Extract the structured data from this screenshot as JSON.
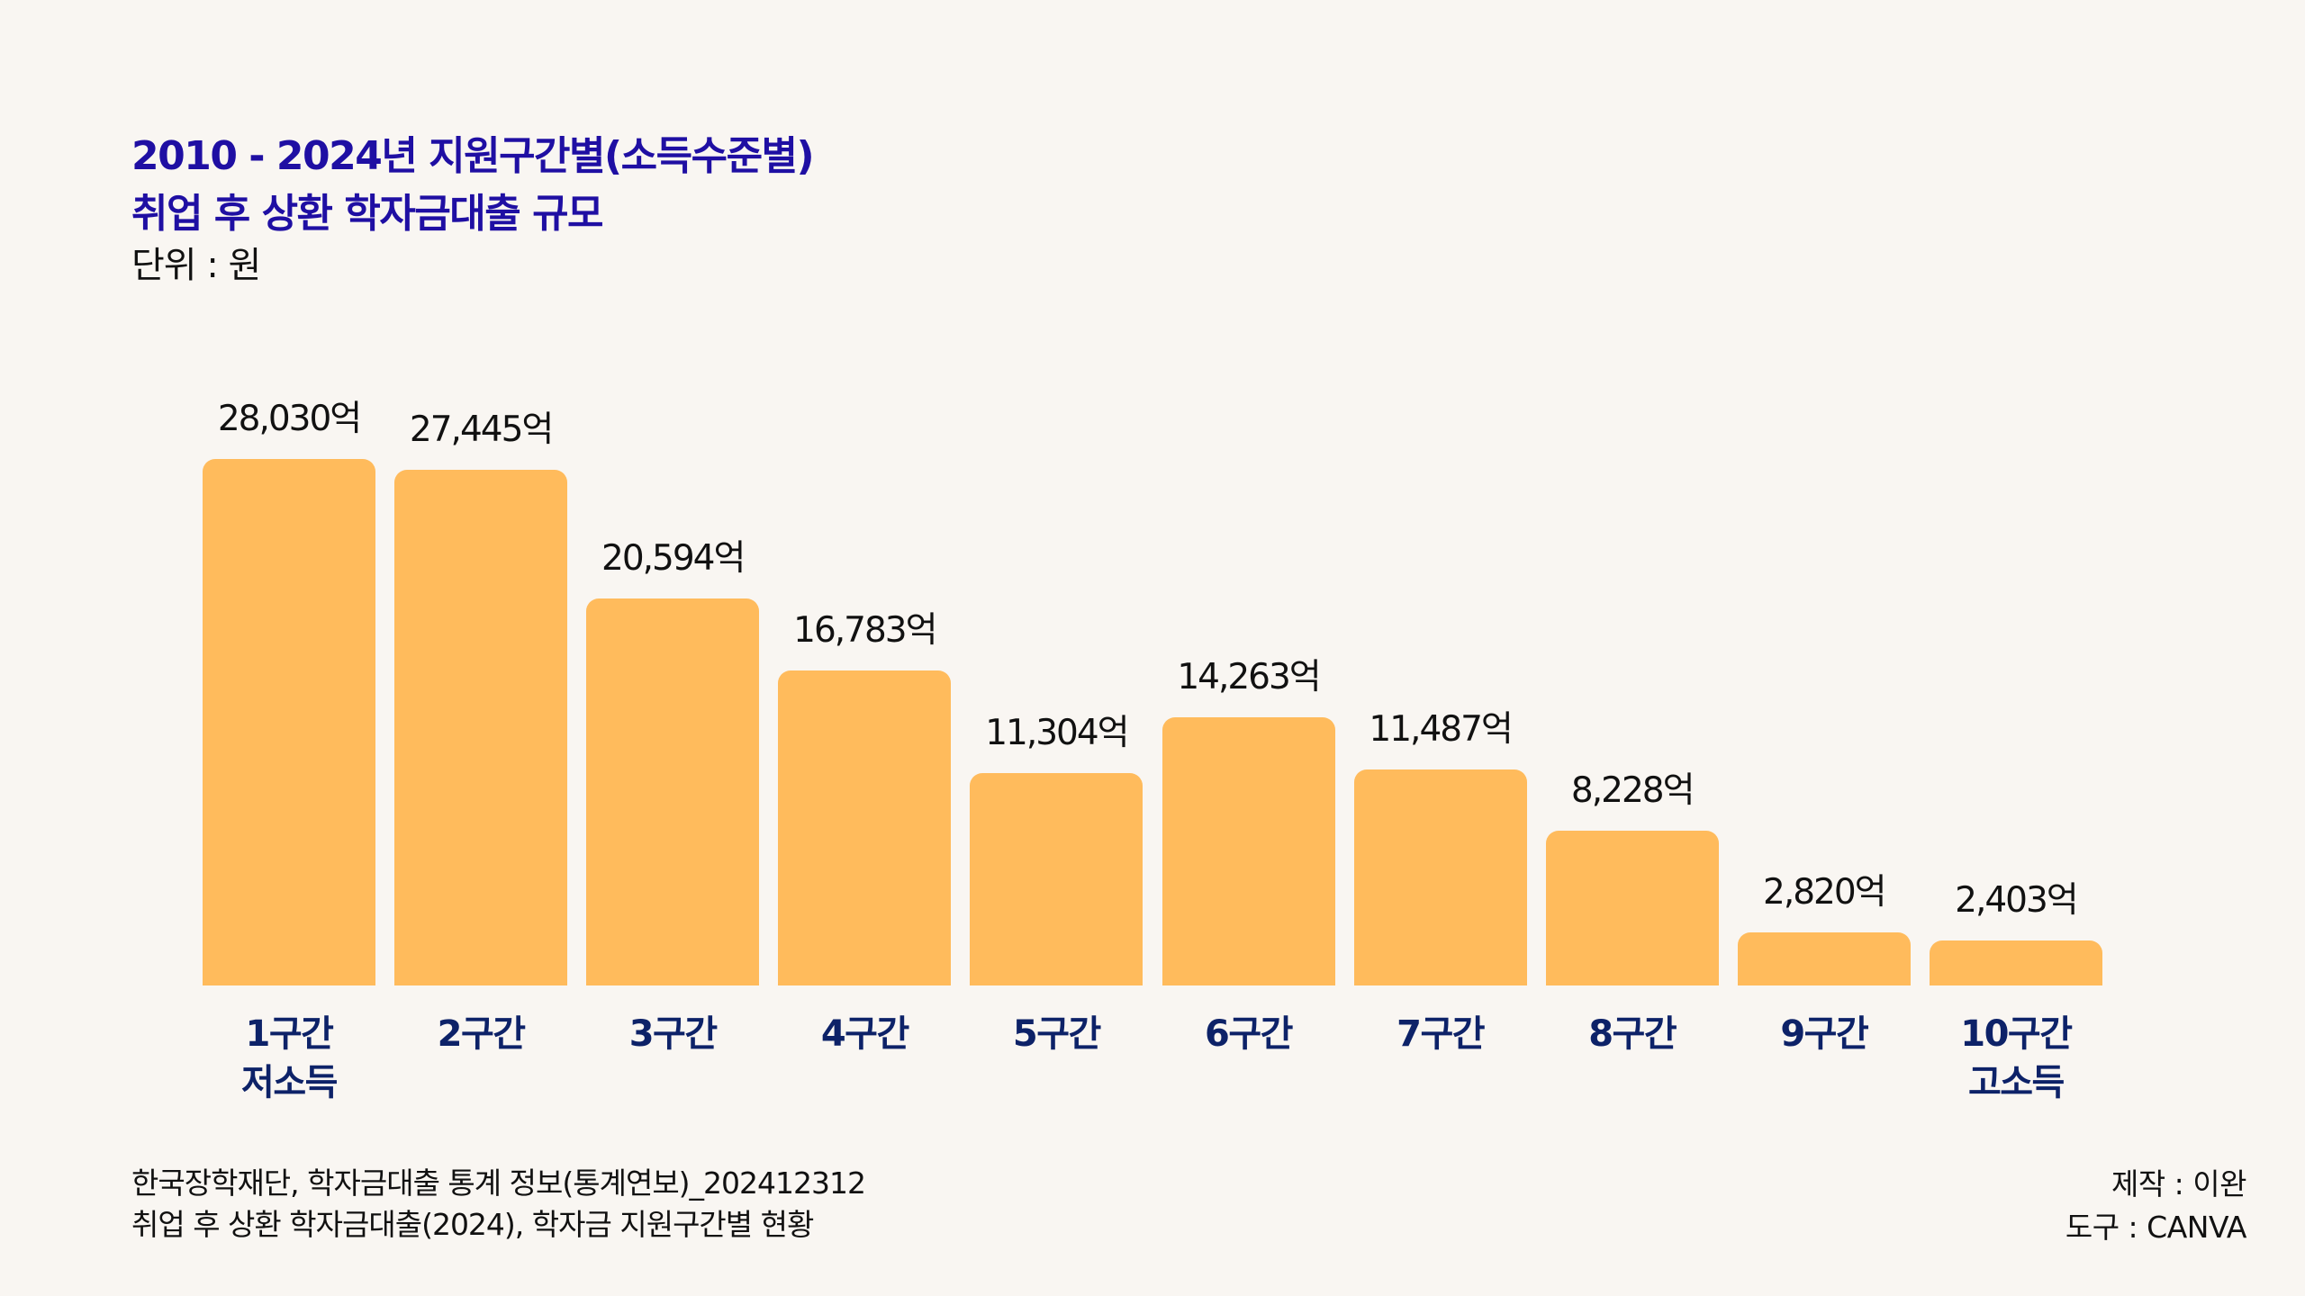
{
  "header": {
    "title_line1": "2010 - 2024년 지원구간별(소득수준별)",
    "title_line2": "취업 후 상환 학자금대출 규모",
    "unit": "단위 : 원"
  },
  "colors": {
    "title": "#1f0fa3",
    "bar": "#ffbb5c",
    "category_label": "#0d2268",
    "background": "#f9f6f2",
    "text": "#111111"
  },
  "chart_data": {
    "type": "bar",
    "title": "2010 - 2024년 지원구간별(소득수준별) 취업 후 상환 학자금대출 규모",
    "subtitle": "단위 : 원",
    "xlabel": "",
    "ylabel": "",
    "categories": [
      "1구간",
      "2구간",
      "3구간",
      "4구간",
      "5구간",
      "6구간",
      "7구간",
      "8구간",
      "9구간",
      "10구간"
    ],
    "category_sublabels": [
      "저소득",
      "",
      "",
      "",
      "",
      "",
      "",
      "",
      "",
      "고소득"
    ],
    "values": [
      28030,
      27445,
      20594,
      16783,
      11304,
      14263,
      11487,
      8228,
      2820,
      2403
    ],
    "value_labels": [
      "28,030억",
      "27,445억",
      "20,594억",
      "16,783억",
      "11,304억",
      "14,263억",
      "11,487억",
      "8,228억",
      "2,820억",
      "2,403억"
    ],
    "value_unit": "억",
    "ylim": [
      0,
      28030
    ],
    "grid": false,
    "legend": "none"
  },
  "footer": {
    "source_line1": "한국장학재단, 학자금대출 통계 정보(통계연보)_202412312",
    "source_line2": "취업 후 상환 학자금대출(2024), 학자금 지원구간별 현황",
    "credit_author": "제작 : 이완",
    "credit_tool": "도구 : CANVA"
  }
}
